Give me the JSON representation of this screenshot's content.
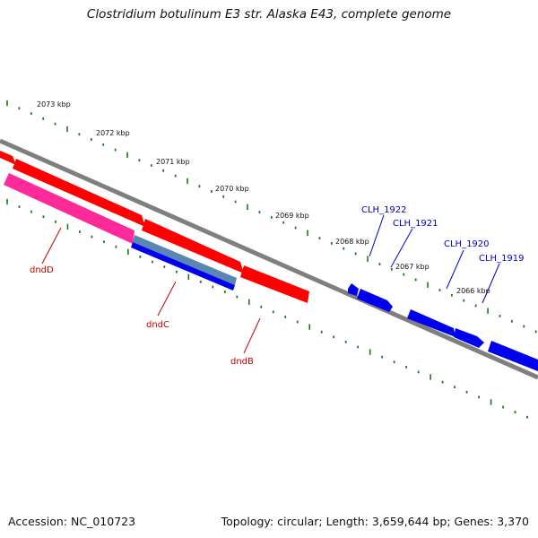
{
  "title": "Clostridium botulinum E3 str. Alaska E43, complete genome",
  "accession": "Accession: NC_010723",
  "summary": "Topology: circular; Length: 3,659,644 bp; Genes: 3,370",
  "colors": {
    "backbone": "#7f7f7f",
    "tick": "#1a7a1a",
    "forward_gene": "#ff0000",
    "reverse_gene": "#0000ee",
    "dnd_pink": "#ff2a9a",
    "dnd_steel": "#5a86b4",
    "label_red": "#cc0000",
    "label_blue": "#0000cc"
  },
  "scale_ticks": [
    "2073 kbp",
    "2072 kbp",
    "2071 kbp",
    "2070 kbp",
    "2069 kbp",
    "2068 kbp",
    "2067 kbp",
    "2066 kbp"
  ],
  "gene_labels_forward": [
    "dndD",
    "dndC",
    "dndB"
  ],
  "gene_labels_reverse": [
    "CLH_1922",
    "CLH_1921",
    "CLH_1920",
    "CLH_1919"
  ]
}
